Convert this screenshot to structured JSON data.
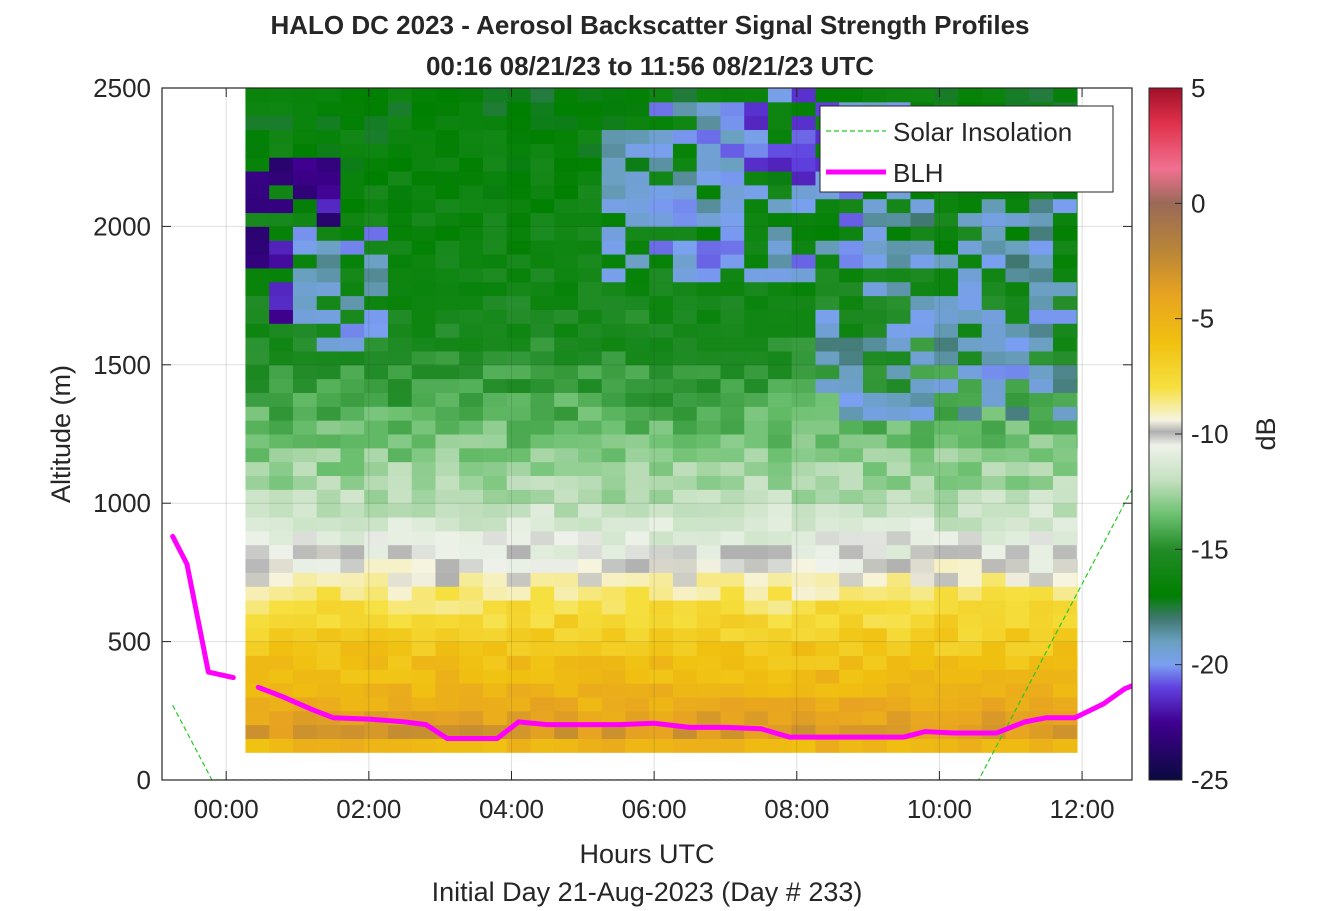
{
  "chart_data": {
    "type": "heatmap",
    "title": "HALO DC 2023 - Aerosol Backscatter Signal Strength Profiles",
    "subtitle": "00:16 08/21/23 to 11:56 08/21/23  UTC",
    "xlabel": "Hours UTC",
    "xlabel_sub": "Initial Day 21-Aug-2023 (Day # 233)",
    "ylabel": "Altitude (m)",
    "xlim": [
      -0.9,
      12.7
    ],
    "ylim": [
      0,
      2500
    ],
    "x_ticks": [
      0,
      2,
      4,
      6,
      8,
      10,
      12
    ],
    "x_tick_labels": [
      "00:00",
      "02:00",
      "04:00",
      "06:00",
      "08:00",
      "10:00",
      "12:00"
    ],
    "y_ticks": [
      0,
      500,
      1000,
      1500,
      2000,
      2500
    ],
    "y_tick_labels": [
      "0",
      "500",
      "1000",
      "1500",
      "2000",
      "2500"
    ],
    "grid": true,
    "colorbar": {
      "label": "dB",
      "range": [
        -25,
        5
      ],
      "ticks": [
        5,
        0,
        -5,
        -10,
        -15,
        -20,
        -25
      ],
      "tick_labels": [
        "5",
        "0",
        "-5",
        "-10",
        "-15",
        "-20",
        "-25"
      ]
    },
    "heatmap": {
      "x_start": 0.27,
      "x_end": 11.93,
      "x_step": 0.333,
      "y_start": 100,
      "y_step": 50,
      "y_end": 2500,
      "colormap": [
        {
          "v": 5,
          "color": "#a0102a"
        },
        {
          "v": 3.5,
          "color": "#e0304a"
        },
        {
          "v": 1.5,
          "color": "#f07090"
        },
        {
          "v": 0,
          "color": "#9a6a58"
        },
        {
          "v": -2,
          "color": "#b88438"
        },
        {
          "v": -4,
          "color": "#e8a420"
        },
        {
          "v": -6,
          "color": "#f0c010"
        },
        {
          "v": -8,
          "color": "#f6e040"
        },
        {
          "v": -9.4,
          "color": "#f6f4e0"
        },
        {
          "v": -9.9,
          "color": "#b0b0b0"
        },
        {
          "v": -10.5,
          "color": "#eef2ea"
        },
        {
          "v": -12,
          "color": "#c4e0c0"
        },
        {
          "v": -13.5,
          "color": "#6cc070"
        },
        {
          "v": -15,
          "color": "#228c28"
        },
        {
          "v": -17,
          "color": "#008000"
        },
        {
          "v": -18,
          "color": "#407870"
        },
        {
          "v": -19,
          "color": "#6aa0c0"
        },
        {
          "v": -20,
          "color": "#7aa0f0"
        },
        {
          "v": -21,
          "color": "#6040e0"
        },
        {
          "v": -22.5,
          "color": "#400090"
        },
        {
          "v": -25,
          "color": "#0a0a40"
        }
      ],
      "value_profile": [
        {
          "alt": 100,
          "db": -7.6
        },
        {
          "alt": 150,
          "db": -3.0
        },
        {
          "alt": 300,
          "db": -5.0
        },
        {
          "alt": 450,
          "db": -6.2
        },
        {
          "alt": 600,
          "db": -7.6
        },
        {
          "alt": 700,
          "db": -8.8
        },
        {
          "alt": 780,
          "db": -10.0
        },
        {
          "alt": 900,
          "db": -11.2
        },
        {
          "alt": 1050,
          "db": -12.4
        },
        {
          "alt": 1300,
          "db": -13.8
        },
        {
          "alt": 1600,
          "db": -15.4
        },
        {
          "alt": 2000,
          "db": -16.2
        },
        {
          "alt": 2500,
          "db": -16.8
        }
      ],
      "features": [
        {
          "x0": -0.1,
          "x1": 1.7,
          "y0": 1650,
          "y1": 2250,
          "db": -22.5
        },
        {
          "x0": 0.9,
          "x1": 2.2,
          "y0": 1550,
          "y1": 2000,
          "db": -19.5
        },
        {
          "x0": 5.2,
          "x1": 9.6,
          "y0": 1800,
          "y1": 2450,
          "db": -19.6
        },
        {
          "x0": 7.3,
          "x1": 9.0,
          "y0": 2150,
          "y1": 2500,
          "db": -20.6
        },
        {
          "x0": 8.2,
          "x1": 11.9,
          "y0": 1300,
          "y1": 1700,
          "db": -19.2
        },
        {
          "x0": 8.8,
          "x1": 11.9,
          "y0": 1700,
          "y1": 2100,
          "db": -19.0
        }
      ]
    },
    "series": [
      {
        "name": "Solar Insolation",
        "style": "dashed",
        "color": "#22cc22",
        "x": [
          -0.75,
          -0.2,
          10.55,
          12.7
        ],
        "y": [
          270,
          0,
          0,
          1050
        ]
      },
      {
        "name": "BLH",
        "style": "solid",
        "color": "#ff00ff",
        "segments": [
          {
            "x": [
              -0.75,
              -0.55,
              -0.25,
              0.1
            ],
            "y": [
              880,
              780,
              390,
              370
            ]
          },
          {
            "x": [
              0.45,
              0.8,
              1.2,
              1.5,
              2.0,
              2.5,
              2.8,
              3.1,
              3.5,
              3.8,
              4.1,
              4.5,
              5.0,
              5.5,
              6.0,
              6.5,
              7.0,
              7.5,
              7.9,
              8.2,
              8.6,
              9.0,
              9.5,
              9.8,
              10.2,
              10.8,
              11.2,
              11.5,
              11.9,
              12.3,
              12.6,
              12.7
            ],
            "y": [
              335,
              300,
              255,
              225,
              220,
              210,
              200,
              150,
              150,
              150,
              210,
              200,
              200,
              200,
              205,
              190,
              190,
              185,
              155,
              155,
              155,
              155,
              155,
              175,
              170,
              170,
              210,
              225,
              225,
              275,
              330,
              340
            ]
          }
        ]
      }
    ],
    "legend": {
      "location": "top-right",
      "entries": [
        "Solar Insolation",
        "BLH"
      ]
    }
  }
}
